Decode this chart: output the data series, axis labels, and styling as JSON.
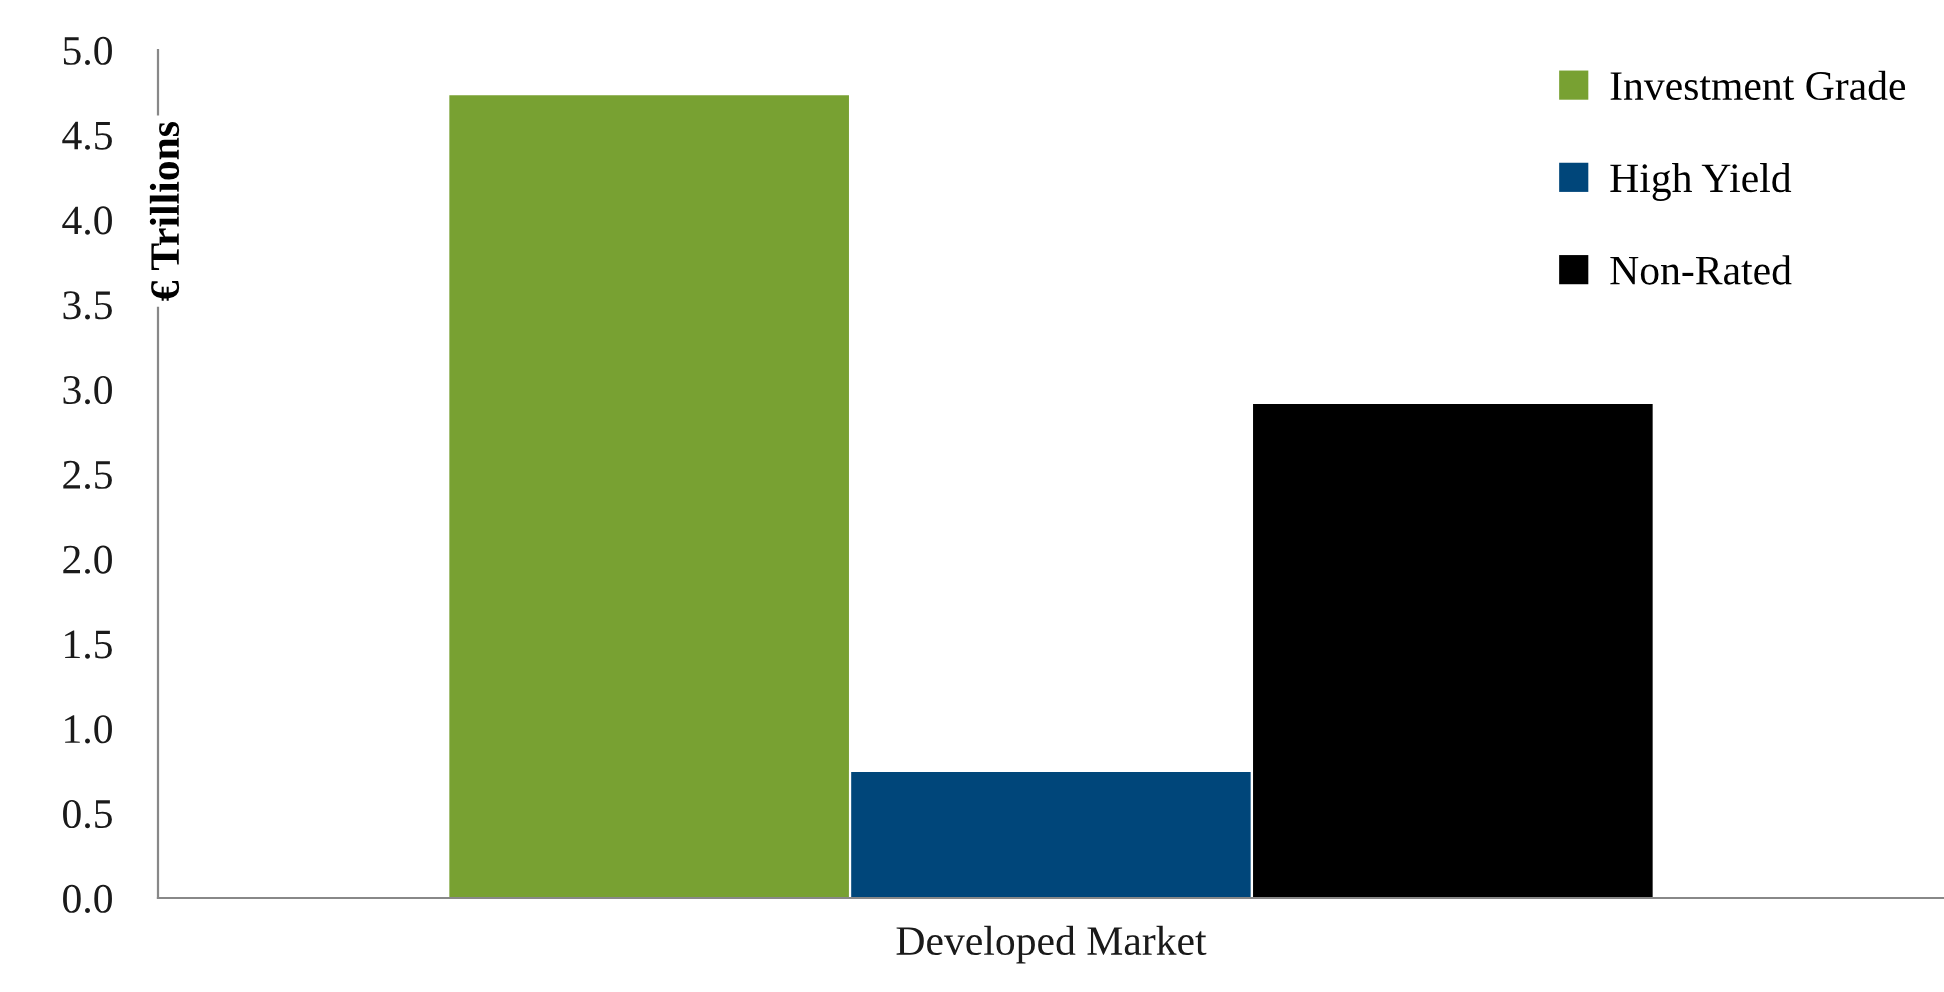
{
  "chart_data": {
    "type": "bar",
    "ylabel": "€ Trillions",
    "categories": [
      "Developed Market"
    ],
    "series": [
      {
        "name": "Investment Grade",
        "color": "#78a132",
        "values": [
          4.74
        ]
      },
      {
        "name": "High Yield",
        "color": "#00467a",
        "values": [
          0.75
        ]
      },
      {
        "name": "Non-Rated",
        "color": "#000000",
        "values": [
          2.92
        ]
      }
    ],
    "ylim": [
      0,
      5
    ],
    "yticks": [
      {
        "value": 0,
        "label": "0.0"
      },
      {
        "value": 0.5,
        "label": "0.5"
      },
      {
        "value": 1,
        "label": "1.0"
      },
      {
        "value": 1.5,
        "label": "1.5"
      },
      {
        "value": 2,
        "label": "2.0"
      },
      {
        "value": 2.5,
        "label": "2.5"
      },
      {
        "value": 3,
        "label": "3.0"
      },
      {
        "value": 3.5,
        "label": "3.5"
      },
      {
        "value": 4,
        "label": "4.0"
      },
      {
        "value": 4.5,
        "label": "4.5"
      },
      {
        "value": 5,
        "label": "5.0"
      }
    ],
    "legend": "top right",
    "grid": false
  }
}
